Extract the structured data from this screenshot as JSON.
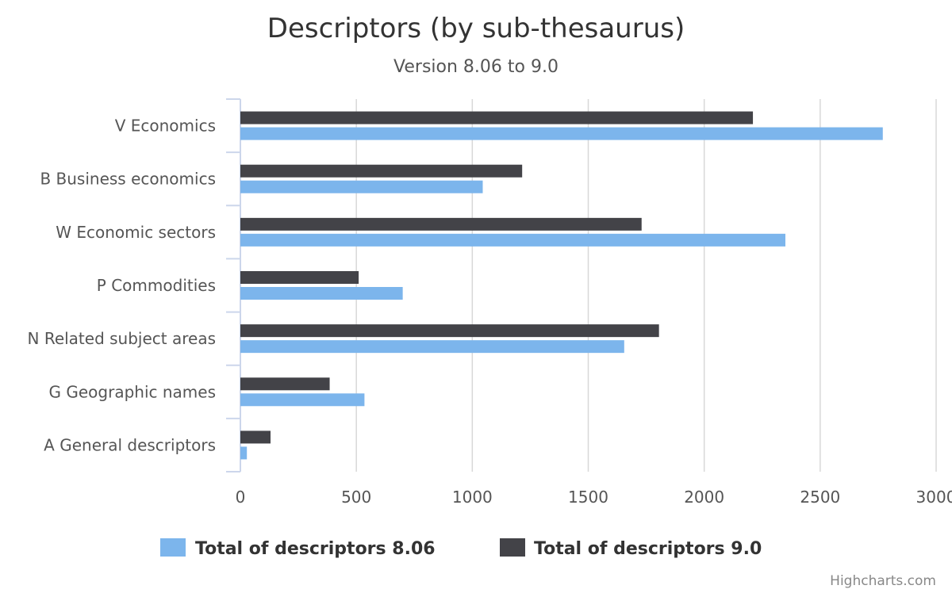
{
  "chart_data": {
    "type": "bar",
    "orientation": "horizontal",
    "title": "Descriptors (by sub-thesaurus)",
    "subtitle": "Version 8.06 to 9.0",
    "categories": [
      "V Economics",
      "B Business economics",
      "W Economic sectors",
      "P Commodities",
      "N Related subject areas",
      "G Geographic names",
      "A General descriptors"
    ],
    "series": [
      {
        "name": "Total of descriptors 8.06",
        "color": "#7cb5ec",
        "values": [
          2770,
          1045,
          2350,
          700,
          1655,
          535,
          28
        ]
      },
      {
        "name": "Total of descriptors 9.0",
        "color": "#434348",
        "values": [
          2210,
          1215,
          1730,
          510,
          1805,
          385,
          130
        ]
      }
    ],
    "xlim": [
      0,
      3000
    ],
    "ticks": [
      0,
      500,
      1000,
      1500,
      2000,
      2500,
      3000
    ],
    "tick_labels": [
      "0",
      "500",
      "1000",
      "1500",
      "2000",
      "2500",
      "3000"
    ],
    "grid": true,
    "legend_position": "bottom-center"
  },
  "credits": "Highcharts.com"
}
